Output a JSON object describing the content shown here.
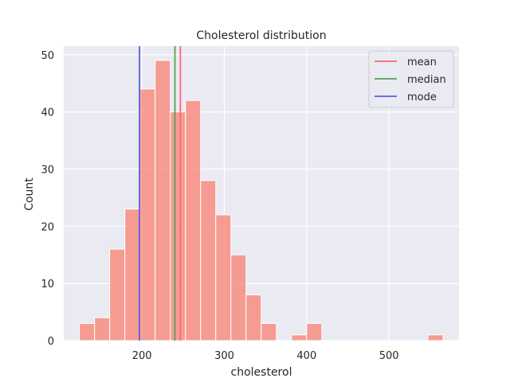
{
  "chart_data": {
    "type": "bar",
    "title": "Cholesterol distribution",
    "xlabel": "cholesterol",
    "ylabel": "Count",
    "xlim": [
      105,
      585
    ],
    "ylim": [
      0,
      51.5
    ],
    "xticks": [
      200,
      300,
      400,
      500
    ],
    "yticks": [
      0,
      10,
      20,
      30,
      40,
      50
    ],
    "grid": true,
    "legend_position": "top-right",
    "bin_width": 18.4,
    "bins": [
      {
        "start": 124.0,
        "end": 142.4,
        "count": 3
      },
      {
        "start": 142.4,
        "end": 160.8,
        "count": 4
      },
      {
        "start": 160.8,
        "end": 179.2,
        "count": 16
      },
      {
        "start": 179.2,
        "end": 197.6,
        "count": 23
      },
      {
        "start": 197.6,
        "end": 216.0,
        "count": 44
      },
      {
        "start": 216.0,
        "end": 234.4,
        "count": 49
      },
      {
        "start": 234.4,
        "end": 252.8,
        "count": 40
      },
      {
        "start": 252.8,
        "end": 271.2,
        "count": 42
      },
      {
        "start": 271.2,
        "end": 289.6,
        "count": 28
      },
      {
        "start": 289.6,
        "end": 308.0,
        "count": 22
      },
      {
        "start": 308.0,
        "end": 326.4,
        "count": 15
      },
      {
        "start": 326.4,
        "end": 344.8,
        "count": 8
      },
      {
        "start": 344.8,
        "end": 363.2,
        "count": 3
      },
      {
        "start": 363.2,
        "end": 381.6,
        "count": 0
      },
      {
        "start": 381.6,
        "end": 400.0,
        "count": 1
      },
      {
        "start": 400.0,
        "end": 418.4,
        "count": 3
      },
      {
        "start": 418.4,
        "end": 436.8,
        "count": 0
      },
      {
        "start": 436.8,
        "end": 455.2,
        "count": 0
      },
      {
        "start": 455.2,
        "end": 473.6,
        "count": 0
      },
      {
        "start": 473.6,
        "end": 492.0,
        "count": 0
      },
      {
        "start": 492.0,
        "end": 510.4,
        "count": 0
      },
      {
        "start": 510.4,
        "end": 528.8,
        "count": 0
      },
      {
        "start": 528.8,
        "end": 547.2,
        "count": 0
      },
      {
        "start": 547.2,
        "end": 565.6,
        "count": 1
      }
    ],
    "lines": [
      {
        "name": "mean",
        "x": 246.6,
        "color": "#fc6a6a"
      },
      {
        "name": "median",
        "x": 240.0,
        "color": "#55a355"
      },
      {
        "name": "mode",
        "x": 197.0,
        "color": "#5b5be0"
      }
    ],
    "bar_color": "#fa8072",
    "plot_background": "#eaeaf2"
  }
}
